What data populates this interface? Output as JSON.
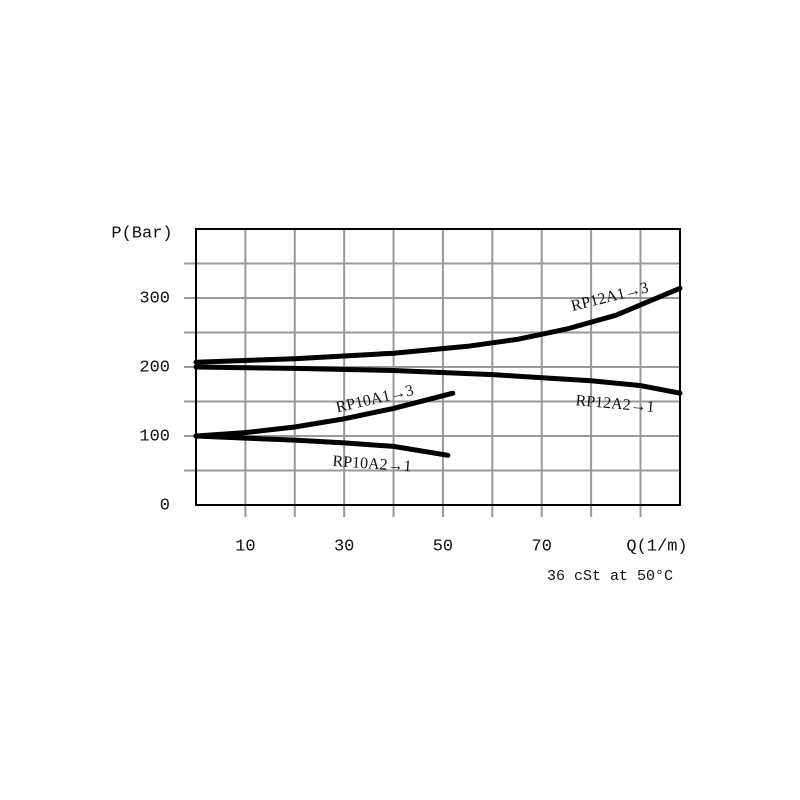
{
  "chart_data": {
    "type": "line",
    "y_label": "P(Bar)",
    "x_label": "Q(1/m)",
    "note": "36 cSt at 50°C",
    "xlim": [
      0,
      98
    ],
    "xticks": [
      10,
      30,
      50,
      70
    ],
    "xgrid": [
      10,
      20,
      30,
      40,
      50,
      60,
      70,
      80,
      90
    ],
    "ylim": [
      0,
      400
    ],
    "yticks": [
      0,
      100,
      200,
      300
    ],
    "ygrid": [
      50,
      100,
      150,
      200,
      250,
      300,
      350
    ],
    "grid": true,
    "series": [
      {
        "name": "RP12A1→3",
        "color": "#000000",
        "x": [
          0,
          20,
          40,
          55,
          65,
          75,
          85,
          98
        ],
        "values": [
          207,
          212,
          220,
          230,
          240,
          255,
          275,
          314
        ]
      },
      {
        "name": "RP12A2→1",
        "color": "#000000",
        "x": [
          0,
          20,
          40,
          60,
          80,
          90,
          98
        ],
        "values": [
          200,
          198,
          195,
          189,
          180,
          173,
          162
        ]
      },
      {
        "name": "RP10A1→3",
        "color": "#000000",
        "x": [
          0,
          10,
          20,
          30,
          40,
          52
        ],
        "values": [
          100,
          105,
          113,
          125,
          140,
          162
        ]
      },
      {
        "name": "RP10A2→1",
        "color": "#000000",
        "x": [
          0,
          10,
          20,
          30,
          40,
          51
        ],
        "values": [
          100,
          97,
          94,
          90,
          85,
          72
        ]
      }
    ]
  }
}
